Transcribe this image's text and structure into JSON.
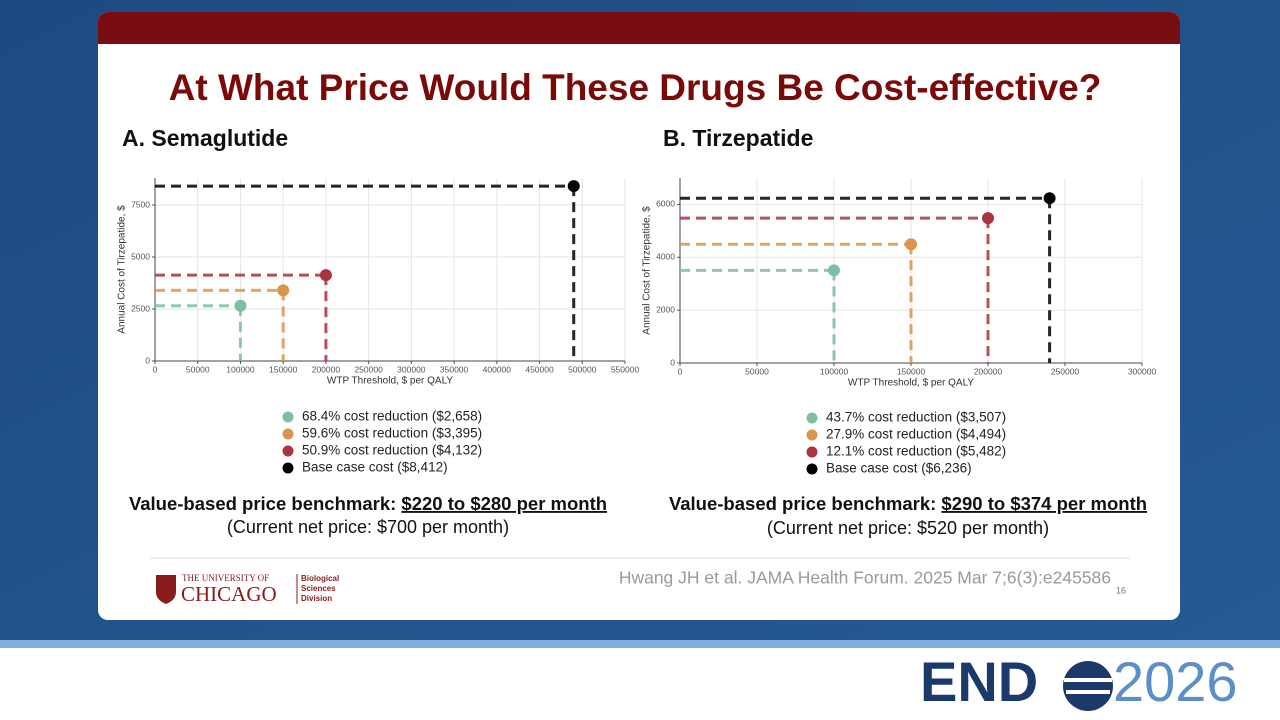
{
  "slide": {
    "title": "At What Price Would These Drugs Be Cost-effective?",
    "benchmarks": [
      {
        "label": "Value-based price benchmark:",
        "range": "$220 to $280 per month",
        "current": "(Current net price: $700 per month)"
      },
      {
        "label": "Value-based price benchmark:",
        "range": "$290 to $374 per month",
        "current": "(Current net price: $520 per month)"
      }
    ],
    "citation": "Hwang JH et al. JAMA Health Forum. 2025 Mar 7;6(3):e245586",
    "page_number": "16",
    "logo": {
      "line1": "THE UNIVERSITY OF",
      "line2": "CHICAGO",
      "division": [
        "Biological",
        "Sciences",
        "Division"
      ]
    },
    "conference": {
      "brand": "END",
      "year": "2026"
    }
  },
  "chart_data": [
    {
      "type": "scatter",
      "title": "A. Semaglutide",
      "x_label": "WTP Threshold, $ per QALY",
      "y_label": "Annual Cost of Tirzepatide, $",
      "xlim": [
        0,
        550000
      ],
      "ylim": [
        0,
        8800
      ],
      "xticks": [
        0,
        50000,
        100000,
        150000,
        200000,
        250000,
        300000,
        350000,
        400000,
        450000,
        500000,
        550000
      ],
      "yticks": [
        0,
        2500,
        5000,
        7500
      ],
      "grid": true,
      "series": [
        {
          "name": "68.4% cost reduction ($2,658)",
          "color": "#7dbf9e",
          "x": [
            100000
          ],
          "values": [
            2658
          ]
        },
        {
          "name": "59.6% cost reduction ($3,395)",
          "color": "#d9964a",
          "x": [
            150000
          ],
          "values": [
            3395
          ]
        },
        {
          "name": "50.9% cost reduction ($4,132)",
          "color": "#a8353f",
          "x": [
            200000
          ],
          "values": [
            4132
          ]
        },
        {
          "name": "Base case cost ($8,412)",
          "color": "#000000",
          "x": [
            490000
          ],
          "values": [
            8412
          ]
        }
      ]
    },
    {
      "type": "scatter",
      "title": "B. Tirzepatide",
      "x_label": "WTP Threshold, $ per QALY",
      "y_label": "Annual Cost of Tirzepatide, $",
      "xlim": [
        0,
        300000
      ],
      "ylim": [
        0,
        7000
      ],
      "xticks": [
        0,
        50000,
        100000,
        150000,
        200000,
        250000,
        300000
      ],
      "yticks": [
        0,
        2000,
        4000,
        6000
      ],
      "grid": true,
      "series": [
        {
          "name": "43.7% cost reduction ($3,507)",
          "color": "#7dbf9e",
          "x": [
            100000
          ],
          "values": [
            3507
          ]
        },
        {
          "name": "27.9% cost reduction ($4,494)",
          "color": "#d9964a",
          "x": [
            150000
          ],
          "values": [
            4494
          ]
        },
        {
          "name": "12.1% cost reduction ($5,482)",
          "color": "#a8353f",
          "x": [
            200000
          ],
          "values": [
            5482
          ]
        },
        {
          "name": "Base case cost ($6,236)",
          "color": "#000000",
          "x": [
            240000
          ],
          "values": [
            6236
          ]
        }
      ]
    }
  ]
}
